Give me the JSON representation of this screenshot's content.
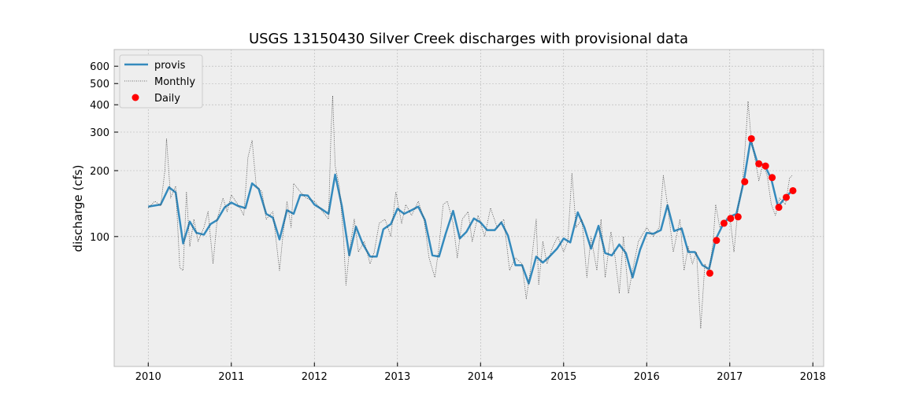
{
  "chart_data": {
    "type": "line",
    "title": "USGS 13150430 Silver Creek discharges with provisional data",
    "ylabel": "discharge (cfs)",
    "xlim": [
      2009.59,
      2018.13
    ],
    "xticks": [
      2010,
      2011,
      2012,
      2013,
      2014,
      2015,
      2016,
      2017,
      2018
    ],
    "ylim": [
      25.5,
      715
    ],
    "yticks": [
      100,
      200,
      300,
      400,
      500,
      600
    ],
    "ylog": true,
    "grid": true,
    "legend": "upper left",
    "series": [
      {
        "name": "provis",
        "color": "#348abd",
        "style": "line",
        "x": [
          2010.0,
          2010.15,
          2010.25,
          2010.33,
          2010.42,
          2010.5,
          2010.58,
          2010.67,
          2010.75,
          2010.83,
          2010.92,
          2011.0,
          2011.08,
          2011.17,
          2011.25,
          2011.33,
          2011.42,
          2011.5,
          2011.58,
          2011.67,
          2011.75,
          2011.83,
          2011.92,
          2012.0,
          2012.08,
          2012.17,
          2012.25,
          2012.33,
          2012.42,
          2012.5,
          2012.58,
          2012.67,
          2012.75,
          2012.83,
          2012.92,
          2013.0,
          2013.08,
          2013.17,
          2013.25,
          2013.33,
          2013.42,
          2013.5,
          2013.58,
          2013.67,
          2013.75,
          2013.83,
          2013.92,
          2014.0,
          2014.08,
          2014.17,
          2014.25,
          2014.33,
          2014.42,
          2014.5,
          2014.58,
          2014.67,
          2014.75,
          2014.83,
          2014.92,
          2015.0,
          2015.08,
          2015.17,
          2015.25,
          2015.33,
          2015.42,
          2015.5,
          2015.58,
          2015.67,
          2015.75,
          2015.83,
          2015.92,
          2016.0,
          2016.08,
          2016.17,
          2016.25,
          2016.33,
          2016.42,
          2016.5,
          2016.58,
          2016.67,
          2016.75,
          2016.83,
          2016.92,
          2017.0,
          2017.08,
          2017.17,
          2017.25,
          2017.33,
          2017.42,
          2017.5,
          2017.58,
          2017.67,
          2017.75
        ],
        "values": [
          137,
          140,
          168,
          159,
          93,
          117,
          104,
          102,
          114,
          119,
          136,
          143,
          138,
          135,
          175,
          165,
          127,
          122,
          97,
          132,
          127,
          155,
          154,
          140,
          134,
          127,
          192,
          138,
          82,
          111,
          93,
          81,
          81,
          108,
          114,
          134,
          127,
          132,
          137,
          119,
          82,
          81,
          103,
          131,
          98,
          105,
          121,
          116,
          107,
          107,
          116,
          101,
          74,
          74,
          61,
          81,
          76,
          81,
          88,
          98,
          94,
          129,
          110,
          88,
          112,
          84,
          82,
          92,
          84,
          65,
          87,
          104,
          103,
          107,
          139,
          106,
          109,
          85,
          85,
          74,
          71,
          97,
          114,
          123,
          127,
          180,
          276,
          219,
          212,
          183,
          137,
          151,
          162
        ]
      },
      {
        "name": "Monthly",
        "color": "#444444",
        "style": "dotted",
        "x": [
          2010.0,
          2010.08,
          2010.15,
          2010.2,
          2010.22,
          2010.27,
          2010.33,
          2010.38,
          2010.42,
          2010.46,
          2010.5,
          2010.55,
          2010.6,
          2010.67,
          2010.72,
          2010.78,
          2010.83,
          2010.9,
          2010.95,
          2011.0,
          2011.08,
          2011.15,
          2011.2,
          2011.25,
          2011.3,
          2011.37,
          2011.42,
          2011.5,
          2011.58,
          2011.62,
          2011.67,
          2011.72,
          2011.75,
          2011.83,
          2011.9,
          2012.0,
          2012.1,
          2012.17,
          2012.2,
          2012.22,
          2012.25,
          2012.3,
          2012.35,
          2012.38,
          2012.42,
          2012.48,
          2012.53,
          2012.6,
          2012.67,
          2012.72,
          2012.78,
          2012.85,
          2012.92,
          2012.98,
          2013.05,
          2013.1,
          2013.17,
          2013.25,
          2013.32,
          2013.38,
          2013.45,
          2013.5,
          2013.55,
          2013.6,
          2013.67,
          2013.72,
          2013.78,
          2013.85,
          2013.9,
          2013.97,
          2014.05,
          2014.12,
          2014.2,
          2014.28,
          2014.35,
          2014.42,
          2014.5,
          2014.55,
          2014.6,
          2014.67,
          2014.7,
          2014.75,
          2014.8,
          2014.87,
          2014.93,
          2015.0,
          2015.05,
          2015.1,
          2015.15,
          2015.22,
          2015.28,
          2015.33,
          2015.4,
          2015.45,
          2015.5,
          2015.57,
          2015.62,
          2015.67,
          2015.72,
          2015.78,
          2015.83,
          2015.9,
          2016.0,
          2016.08,
          2016.15,
          2016.2,
          2016.25,
          2016.32,
          2016.4,
          2016.45,
          2016.5,
          2016.55,
          2016.6,
          2016.65,
          2016.7,
          2016.75,
          2016.8,
          2016.83,
          2016.88,
          2016.95,
          2017.0,
          2017.05,
          2017.1,
          2017.15,
          2017.2,
          2017.22,
          2017.25,
          2017.3,
          2017.35,
          2017.4,
          2017.45,
          2017.5,
          2017.55,
          2017.6,
          2017.67,
          2017.72,
          2017.75
        ],
        "values": [
          135,
          145,
          138,
          200,
          280,
          150,
          170,
          72,
          70,
          160,
          90,
          120,
          95,
          110,
          130,
          75,
          120,
          150,
          130,
          155,
          140,
          125,
          230,
          275,
          170,
          160,
          120,
          130,
          70,
          100,
          145,
          110,
          175,
          160,
          150,
          145,
          130,
          120,
          300,
          440,
          210,
          170,
          100,
          60,
          85,
          120,
          85,
          95,
          75,
          85,
          115,
          120,
          100,
          160,
          115,
          140,
          125,
          145,
          120,
          80,
          65,
          90,
          140,
          145,
          115,
          80,
          120,
          130,
          95,
          125,
          100,
          135,
          110,
          120,
          70,
          80,
          75,
          52,
          70,
          120,
          60,
          95,
          75,
          90,
          100,
          85,
          95,
          195,
          110,
          120,
          65,
          100,
          70,
          120,
          65,
          105,
          80,
          55,
          100,
          55,
          70,
          95,
          110,
          100,
          110,
          190,
          140,
          85,
          120,
          70,
          90,
          75,
          85,
          38,
          75,
          68,
          95,
          140,
          110,
          120,
          125,
          85,
          135,
          170,
          310,
          415,
          300,
          230,
          180,
          215,
          190,
          140,
          125,
          150,
          140,
          185,
          190
        ]
      },
      {
        "name": "Daily",
        "color": "#ff0000",
        "style": "points",
        "x": [
          2016.76,
          2016.84,
          2016.93,
          2017.01,
          2017.1,
          2017.18,
          2017.26,
          2017.35,
          2017.43,
          2017.51,
          2017.59,
          2017.68,
          2017.76
        ],
        "values": [
          68,
          96,
          115,
          121,
          123,
          178,
          280,
          215,
          210,
          186,
          136,
          151,
          162
        ]
      }
    ]
  }
}
